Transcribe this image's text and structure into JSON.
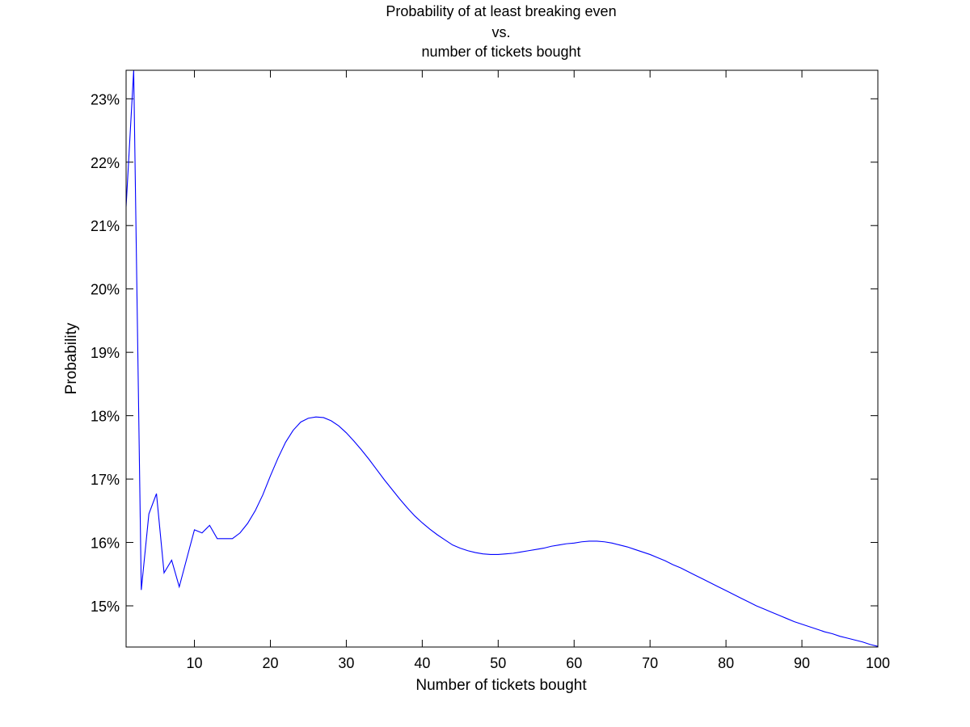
{
  "chart_data": {
    "type": "line",
    "title": [
      "Probability of at least breaking even",
      "vs.",
      "number of tickets bought"
    ],
    "xlabel": "Number of tickets bought",
    "ylabel": "Probability",
    "xlim": [
      1,
      100
    ],
    "ylim": [
      14.35,
      23.45
    ],
    "grid": false,
    "line_color": "#0000ff",
    "x_ticks": [
      10,
      20,
      30,
      40,
      50,
      60,
      70,
      80,
      90,
      100
    ],
    "x_tick_labels": [
      "10",
      "20",
      "30",
      "40",
      "50",
      "60",
      "70",
      "80",
      "90",
      "100"
    ],
    "y_ticks": [
      15,
      16,
      17,
      18,
      19,
      20,
      21,
      22,
      23
    ],
    "y_tick_labels": [
      "15%",
      "16%",
      "17%",
      "18%",
      "19%",
      "20%",
      "21%",
      "22%",
      "23%"
    ],
    "series": [
      {
        "x": [
          1,
          2,
          3,
          4,
          5,
          6,
          7,
          8,
          9,
          10,
          11,
          12,
          13,
          14,
          15,
          16,
          17,
          18,
          19,
          20,
          21,
          22,
          23,
          24,
          25,
          26,
          27,
          28,
          29,
          30,
          31,
          32,
          33,
          34,
          35,
          36,
          37,
          38,
          39,
          40,
          41,
          42,
          43,
          44,
          45,
          46,
          47,
          48,
          49,
          50,
          51,
          52,
          53,
          54,
          55,
          56,
          57,
          58,
          59,
          60,
          61,
          62,
          63,
          64,
          65,
          66,
          67,
          68,
          69,
          70,
          71,
          72,
          73,
          74,
          75,
          76,
          77,
          78,
          79,
          80,
          81,
          82,
          83,
          84,
          85,
          86,
          87,
          88,
          89,
          90,
          91,
          92,
          93,
          94,
          95,
          96,
          97,
          98,
          99,
          100
        ],
        "y": [
          21.3,
          23.45,
          15.25,
          16.45,
          16.77,
          15.52,
          15.72,
          15.3,
          15.75,
          16.2,
          16.15,
          16.27,
          16.06,
          16.06,
          16.06,
          16.15,
          16.3,
          16.5,
          16.75,
          17.05,
          17.33,
          17.58,
          17.77,
          17.9,
          17.96,
          17.98,
          17.97,
          17.92,
          17.84,
          17.73,
          17.6,
          17.46,
          17.31,
          17.15,
          16.99,
          16.84,
          16.69,
          16.55,
          16.42,
          16.31,
          16.21,
          16.12,
          16.04,
          15.96,
          15.91,
          15.87,
          15.84,
          15.82,
          15.81,
          15.81,
          15.82,
          15.83,
          15.85,
          15.87,
          15.89,
          15.91,
          15.94,
          15.96,
          15.98,
          15.99,
          16.01,
          16.02,
          16.02,
          16.01,
          15.99,
          15.96,
          15.93,
          15.89,
          15.85,
          15.81,
          15.76,
          15.71,
          15.65,
          15.6,
          15.54,
          15.48,
          15.42,
          15.36,
          15.3,
          15.24,
          15.18,
          15.12,
          15.06,
          15.0,
          14.95,
          14.9,
          14.85,
          14.8,
          14.75,
          14.71,
          14.67,
          14.63,
          14.59,
          14.56,
          14.52,
          14.49,
          14.46,
          14.43,
          14.39,
          14.36
        ]
      }
    ]
  }
}
